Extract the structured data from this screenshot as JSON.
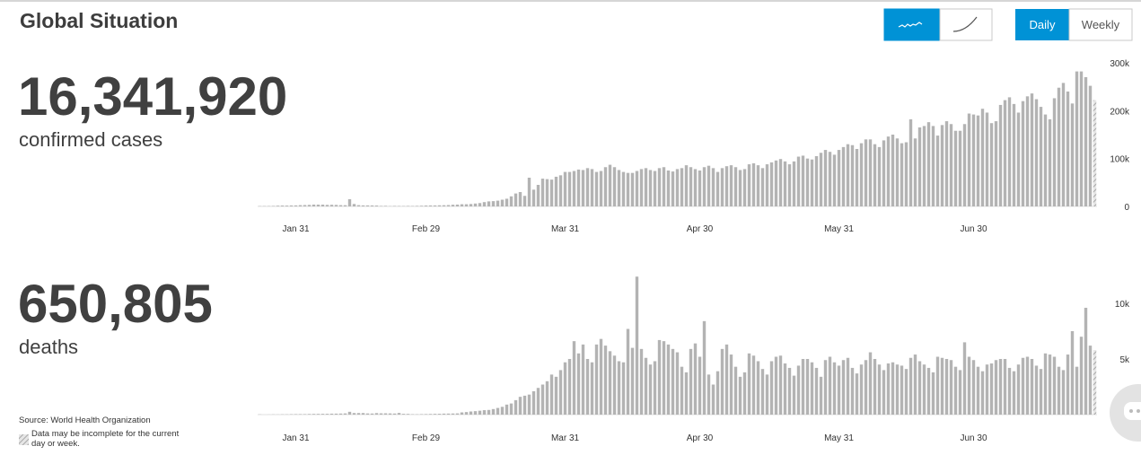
{
  "header": {
    "title": "Global Situation",
    "period_buttons": [
      "Daily",
      "Weekly"
    ]
  },
  "summary": [
    {
      "value": "16,341,920",
      "label": "confirmed cases"
    },
    {
      "value": "650,805",
      "label": "deaths"
    }
  ],
  "source": "Source: World Health Organization",
  "note": "Data may be incomplete for the current day or week.",
  "chart_data": [
    {
      "type": "bar",
      "color": "#b3b3b3",
      "hatch_last": true,
      "ylim": [
        0,
        300000
      ],
      "yticks": [
        0,
        {
          "value": 100000,
          "label": "100k"
        },
        {
          "value": 200000,
          "label": "200k"
        },
        {
          "value": 300000,
          "label": "300k"
        }
      ],
      "categories": [
        null,
        null,
        null,
        null,
        null,
        null,
        null,
        null,
        "Jan 31",
        null,
        null,
        null,
        null,
        null,
        null,
        null,
        null,
        null,
        null,
        null,
        null,
        null,
        null,
        null,
        null,
        null,
        null,
        null,
        null,
        null,
        null,
        null,
        null,
        null,
        null,
        null,
        null,
        "Feb 29",
        null,
        null,
        null,
        null,
        null,
        null,
        null,
        null,
        null,
        null,
        null,
        null,
        null,
        null,
        null,
        null,
        null,
        null,
        null,
        null,
        null,
        null,
        null,
        null,
        null,
        null,
        null,
        null,
        null,
        null,
        "Mar 31",
        null,
        null,
        null,
        null,
        null,
        null,
        null,
        null,
        null,
        null,
        null,
        null,
        null,
        null,
        null,
        null,
        null,
        null,
        null,
        null,
        null,
        null,
        null,
        null,
        null,
        null,
        null,
        null,
        null,
        "Apr 30",
        null,
        null,
        null,
        null,
        null,
        null,
        null,
        null,
        null,
        null,
        null,
        null,
        null,
        null,
        null,
        null,
        null,
        null,
        null,
        null,
        null,
        null,
        null,
        null,
        null,
        null,
        null,
        null,
        null,
        null,
        "May 31",
        null,
        null,
        null,
        null,
        null,
        null,
        null,
        null,
        null,
        null,
        null,
        null,
        null,
        null,
        null,
        null,
        null,
        null,
        null,
        null,
        null,
        null,
        null,
        null,
        null,
        null,
        null,
        null,
        null,
        "Jun 30",
        null,
        null,
        null,
        null,
        null,
        null,
        null,
        null,
        null,
        null,
        null,
        null,
        null,
        null,
        null,
        null,
        null,
        null,
        null,
        null,
        null,
        null,
        null,
        null,
        null,
        null,
        null
      ],
      "values": [
        600,
        700,
        800,
        1000,
        1500,
        1800,
        1700,
        2000,
        2100,
        2600,
        2800,
        3200,
        3800,
        3700,
        3700,
        3200,
        3400,
        3100,
        2600,
        2500,
        15000,
        5000,
        2600,
        2100,
        2100,
        2000,
        1800,
        1000,
        1200,
        600,
        1000,
        900,
        800,
        1000,
        900,
        1100,
        1400,
        1800,
        2000,
        2000,
        2300,
        2500,
        2800,
        3500,
        3800,
        4500,
        4500,
        5000,
        6000,
        7000,
        9000,
        10500,
        11000,
        12000,
        14000,
        16000,
        21000,
        27000,
        30000,
        22000,
        60000,
        35000,
        45000,
        58000,
        57000,
        56000,
        62000,
        65000,
        72000,
        72000,
        74000,
        77000,
        76000,
        80000,
        78000,
        72000,
        74000,
        82000,
        87000,
        82000,
        76000,
        72000,
        70000,
        70000,
        74000,
        78000,
        80000,
        76000,
        74000,
        80000,
        82000,
        75000,
        73000,
        78000,
        80000,
        86000,
        82000,
        78000,
        75000,
        82000,
        85000,
        80000,
        72000,
        80000,
        84000,
        86000,
        82000,
        76000,
        78000,
        88000,
        90000,
        86000,
        80000,
        88000,
        92000,
        96000,
        99000,
        94000,
        88000,
        94000,
        104000,
        106000,
        100000,
        98000,
        105000,
        112000,
        118000,
        114000,
        108000,
        118000,
        124000,
        130000,
        128000,
        120000,
        132000,
        140000,
        140000,
        130000,
        124000,
        138000,
        146000,
        150000,
        142000,
        132000,
        134000,
        182000,
        142000,
        165000,
        168000,
        176000,
        168000,
        148000,
        170000,
        178000,
        172000,
        158000,
        158000,
        172000,
        194000,
        192000,
        190000,
        204000,
        196000,
        174000,
        178000,
        212000,
        222000,
        228000,
        214000,
        196000,
        220000,
        230000,
        236000,
        224000,
        208000,
        192000,
        182000,
        226000,
        248000,
        258000,
        240000,
        215000,
        282000,
        282000,
        270000,
        252000,
        222000
      ]
    },
    {
      "type": "bar",
      "color": "#b3b3b3",
      "hatch_last": true,
      "ylim": [
        0,
        12500
      ],
      "yticks": [
        {
          "value": 5000,
          "label": "5k"
        },
        {
          "value": 10000,
          "label": "10k"
        }
      ],
      "categories": [
        null,
        null,
        null,
        null,
        null,
        null,
        null,
        null,
        "Jan 31",
        null,
        null,
        null,
        null,
        null,
        null,
        null,
        null,
        null,
        null,
        null,
        null,
        null,
        null,
        null,
        null,
        null,
        null,
        null,
        null,
        null,
        null,
        null,
        null,
        null,
        null,
        null,
        null,
        "Feb 29",
        null,
        null,
        null,
        null,
        null,
        null,
        null,
        null,
        null,
        null,
        null,
        null,
        null,
        null,
        null,
        null,
        null,
        null,
        null,
        null,
        null,
        null,
        null,
        null,
        null,
        null,
        null,
        null,
        null,
        null,
        "Mar 31",
        null,
        null,
        null,
        null,
        null,
        null,
        null,
        null,
        null,
        null,
        null,
        null,
        null,
        null,
        null,
        null,
        null,
        null,
        null,
        null,
        null,
        null,
        null,
        null,
        null,
        null,
        null,
        null,
        null,
        "Apr 30",
        null,
        null,
        null,
        null,
        null,
        null,
        null,
        null,
        null,
        null,
        null,
        null,
        null,
        null,
        null,
        null,
        null,
        null,
        null,
        null,
        null,
        null,
        null,
        null,
        null,
        null,
        null,
        null,
        null,
        null,
        "May 31",
        null,
        null,
        null,
        null,
        null,
        null,
        null,
        null,
        null,
        null,
        null,
        null,
        null,
        null,
        null,
        null,
        null,
        null,
        null,
        null,
        null,
        null,
        null,
        null,
        null,
        null,
        null,
        null,
        null,
        "Jun 30",
        null,
        null,
        null,
        null,
        null,
        null,
        null,
        null,
        null,
        null,
        null,
        null,
        null,
        null,
        null,
        null,
        null,
        null,
        null,
        null,
        null,
        null,
        null,
        null,
        null,
        null,
        null
      ],
      "values": [
        17,
        0,
        8,
        16,
        14,
        26,
        26,
        38,
        43,
        46,
        45,
        57,
        64,
        66,
        73,
        73,
        86,
        89,
        97,
        108,
        254,
        143,
        143,
        142,
        106,
        98,
        136,
        115,
        118,
        109,
        97,
        150,
        71,
        64,
        38,
        31,
        44,
        50,
        60,
        70,
        75,
        90,
        95,
        100,
        110,
        200,
        230,
        280,
        310,
        350,
        400,
        420,
        500,
        600,
        700,
        900,
        1000,
        1300,
        1600,
        1700,
        1800,
        2100,
        2400,
        2700,
        3000,
        3600,
        3400,
        4000,
        4700,
        5000,
        6600,
        5500,
        6300,
        5000,
        4700,
        6300,
        6800,
        6200,
        5700,
        5300,
        4800,
        4700,
        7700,
        6000,
        12400,
        5900,
        5100,
        4500,
        4800,
        6700,
        6600,
        6300,
        5900,
        5600,
        4300,
        3800,
        5900,
        6400,
        5200,
        8400,
        3600,
        2700,
        3900,
        5900,
        6300,
        5400,
        4300,
        3400,
        3800,
        5500,
        5300,
        4800,
        4100,
        3600,
        4800,
        5200,
        5300,
        4600,
        4200,
        3500,
        4400,
        5000,
        5000,
        4700,
        4200,
        3400,
        4900,
        5200,
        4700,
        4400,
        4900,
        5100,
        4200,
        3700,
        4500,
        4900,
        5600,
        5000,
        4500,
        4000,
        4600,
        4700,
        4500,
        4400,
        4100,
        5100,
        5400,
        4800,
        4500,
        4200,
        3800,
        5200,
        5100,
        5000,
        4900,
        4300,
        4000,
        6500,
        5200,
        4900,
        4300,
        3900,
        4500,
        4600,
        4900,
        5000,
        5000,
        4200,
        3900,
        4500,
        5100,
        5200,
        5000,
        4400,
        4100,
        5500,
        5400,
        5200,
        4300,
        4000,
        5400,
        7500,
        4300,
        7000,
        9600,
        6200,
        5800
      ]
    }
  ]
}
